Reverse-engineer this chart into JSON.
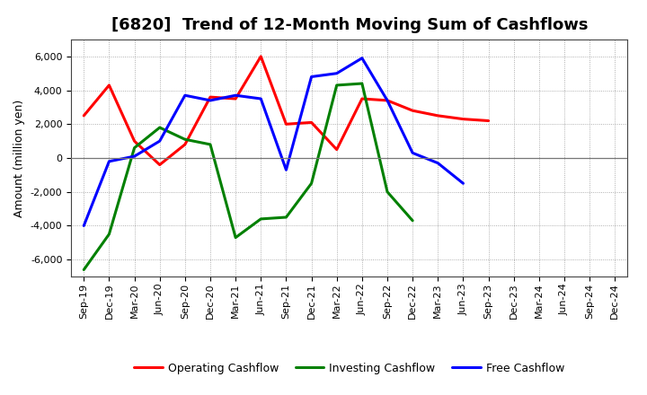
{
  "title": "[6820]  Trend of 12-Month Moving Sum of Cashflows",
  "ylabel": "Amount (million yen)",
  "xlabels": [
    "Sep-19",
    "Dec-19",
    "Mar-20",
    "Jun-20",
    "Sep-20",
    "Dec-20",
    "Mar-21",
    "Jun-21",
    "Sep-21",
    "Dec-21",
    "Mar-22",
    "Jun-22",
    "Sep-22",
    "Dec-22",
    "Mar-23",
    "Jun-23",
    "Sep-23",
    "Dec-23",
    "Mar-24",
    "Jun-24",
    "Sep-24",
    "Dec-24"
  ],
  "op_data": [
    2500,
    4300,
    1000,
    -400,
    800,
    3600,
    3500,
    6000,
    2000,
    2100,
    500,
    3500,
    3400,
    2800,
    2500,
    2300,
    2200,
    null,
    null,
    null,
    null,
    null
  ],
  "inv_data": [
    -6600,
    -4500,
    600,
    1800,
    1100,
    800,
    -4700,
    -3600,
    -3500,
    -1500,
    4300,
    4400,
    -2000,
    -3700,
    null,
    null,
    null,
    null,
    null,
    null,
    null,
    null
  ],
  "free_data": [
    -4000,
    -200,
    100,
    1000,
    3700,
    3400,
    3700,
    3500,
    -700,
    4800,
    5000,
    5900,
    3400,
    300,
    -300,
    -1500,
    null,
    null,
    null,
    null,
    null,
    null
  ],
  "ylim": [
    -7000,
    7000
  ],
  "yticks": [
    -6000,
    -4000,
    -2000,
    0,
    2000,
    4000,
    6000
  ],
  "operating_color": "#ff0000",
  "investing_color": "#008000",
  "free_color": "#0000ff",
  "bg_color": "#ffffff",
  "grid_color": "#999999",
  "linewidth": 2.2,
  "title_fontsize": 13,
  "axis_label_fontsize": 9,
  "tick_fontsize": 8
}
